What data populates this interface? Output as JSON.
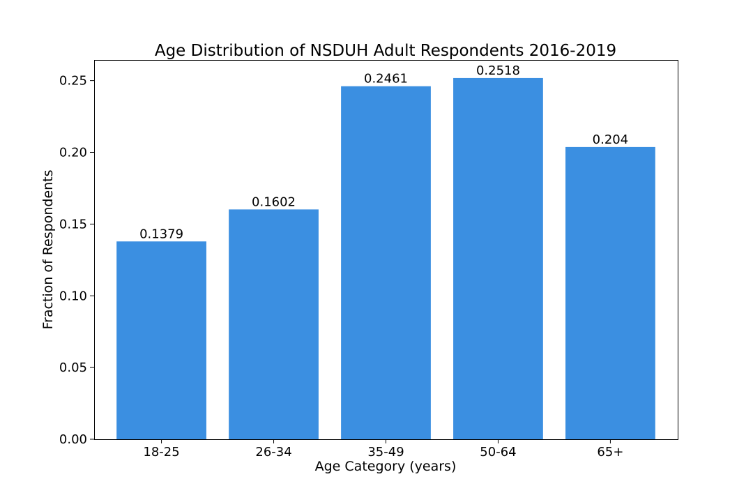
{
  "chart_data": {
    "type": "bar",
    "title": "Age Distribution of NSDUH Adult Respondents 2016-2019",
    "xlabel": "Age Category (years)",
    "ylabel": "Fraction of Respondents",
    "categories": [
      "18-25",
      "26-34",
      "35-49",
      "50-64",
      "65+"
    ],
    "values": [
      0.1379,
      0.1602,
      0.2461,
      0.2518,
      0.2037
    ],
    "data_labels": [
      "0.1379",
      "0.1602",
      "0.2461",
      "0.2518",
      "0.204"
    ],
    "ylim": [
      0,
      0.2644
    ],
    "yticks": [
      "0.00",
      "0.05",
      "0.10",
      "0.15",
      "0.20",
      "0.25"
    ],
    "bar_color": "#3b8fe1",
    "grid": false
  }
}
